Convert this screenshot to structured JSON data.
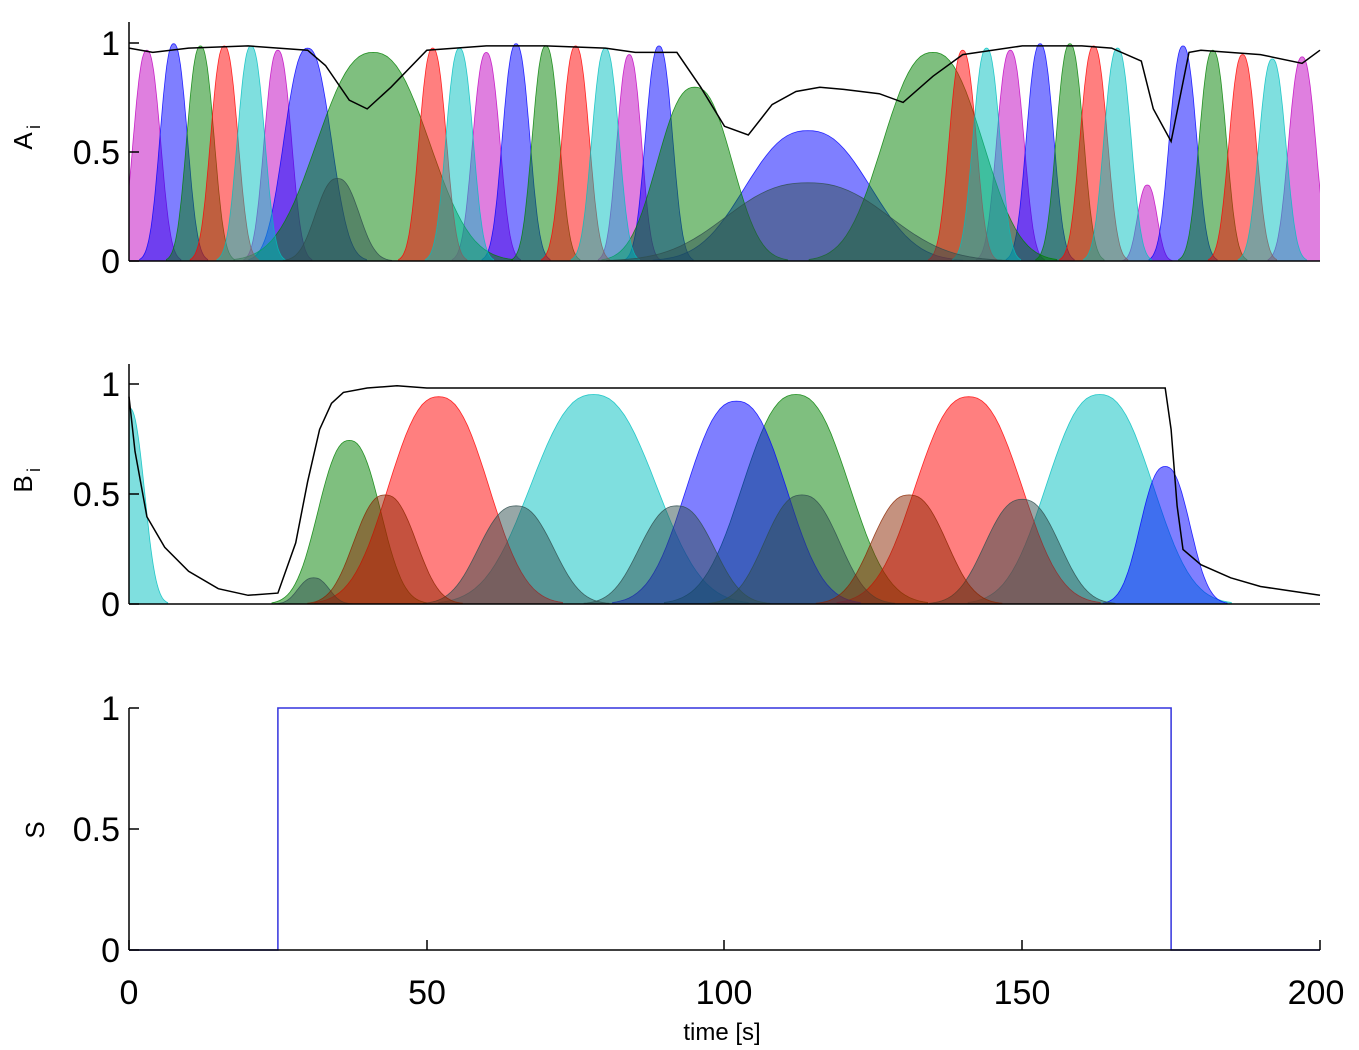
{
  "colors": {
    "blue": "#0000ff",
    "green": "#008000",
    "red": "#ff0000",
    "cyan": "#00bfbf",
    "magenta": "#bf00bf",
    "envelope": "#000000",
    "signal": "#3333dd"
  },
  "chart_data": [
    {
      "id": "A",
      "type": "area",
      "ylabel": "A",
      "ylabel_sub": "i",
      "xlim": [
        0,
        200
      ],
      "ylim": [
        0,
        1.1
      ],
      "yticks": [
        0,
        0.5,
        1
      ],
      "ytick_labels": [
        "0",
        "0.5",
        "1"
      ],
      "show_x_ticklabels": false,
      "grid": false,
      "envelope": {
        "x": [
          0,
          4,
          10,
          20,
          30,
          33,
          37,
          40,
          44,
          50,
          60,
          70,
          80,
          85,
          92,
          96,
          100,
          104,
          108,
          112,
          116,
          120,
          126,
          130,
          135,
          140,
          150,
          160,
          165,
          170,
          172,
          175,
          178,
          180,
          190,
          197,
          200
        ],
        "y": [
          0.98,
          0.96,
          0.98,
          0.99,
          0.97,
          0.9,
          0.74,
          0.7,
          0.8,
          0.97,
          0.99,
          0.99,
          0.98,
          0.96,
          0.96,
          0.8,
          0.62,
          0.58,
          0.72,
          0.78,
          0.8,
          0.79,
          0.77,
          0.73,
          0.85,
          0.95,
          0.99,
          0.99,
          0.98,
          0.92,
          0.7,
          0.55,
          0.96,
          0.97,
          0.95,
          0.91,
          0.97
        ]
      },
      "series": [
        {
          "color": "magenta",
          "peaks": [
            {
              "c": 3,
              "w": 2.2,
              "h": 0.97
            },
            {
              "c": 25,
              "w": 2.2,
              "h": 0.97
            },
            {
              "c": 60,
              "w": 2.2,
              "h": 0.96
            },
            {
              "c": 84,
              "w": 2.0,
              "h": 0.95
            },
            {
              "c": 148,
              "w": 2.2,
              "h": 0.97
            },
            {
              "c": 171,
              "w": 1.6,
              "h": 0.35
            },
            {
              "c": 197,
              "w": 2.2,
              "h": 0.94
            }
          ]
        },
        {
          "color": "blue",
          "peaks": [
            {
              "c": 7.5,
              "w": 2.2,
              "h": 1.0
            },
            {
              "c": 30,
              "w": 3.8,
              "h": 0.98
            },
            {
              "c": 65,
              "w": 2.2,
              "h": 1.0
            },
            {
              "c": 89,
              "w": 2.2,
              "h": 0.99
            },
            {
              "c": 114,
              "w": 10,
              "h": 0.6
            },
            {
              "c": 153,
              "w": 2.2,
              "h": 1.0
            },
            {
              "c": 177,
              "w": 2.2,
              "h": 0.99
            }
          ]
        },
        {
          "color": "green",
          "peaks": [
            {
              "c": 12,
              "w": 2.2,
              "h": 0.99
            },
            {
              "c": 41,
              "w": 9,
              "h": 0.96
            },
            {
              "c": 70,
              "w": 2.2,
              "h": 0.99
            },
            {
              "c": 95,
              "w": 6,
              "h": 0.8
            },
            {
              "c": 135,
              "w": 8,
              "h": 0.96
            },
            {
              "c": 158,
              "w": 2.2,
              "h": 1.0
            },
            {
              "c": 182,
              "w": 2.2,
              "h": 0.97
            }
          ]
        },
        {
          "color": "red",
          "peaks": [
            {
              "c": 16,
              "w": 2.2,
              "h": 0.99
            },
            {
              "c": 51,
              "w": 2.2,
              "h": 0.98
            },
            {
              "c": 75,
              "w": 2.2,
              "h": 0.99
            },
            {
              "c": 140,
              "w": 2.2,
              "h": 0.97
            },
            {
              "c": 162,
              "w": 2.2,
              "h": 0.99
            },
            {
              "c": 187,
              "w": 2.2,
              "h": 0.95
            }
          ]
        },
        {
          "color": "cyan",
          "peaks": [
            {
              "c": 20.5,
              "w": 2.2,
              "h": 0.99
            },
            {
              "c": 55.5,
              "w": 2.2,
              "h": 0.98
            },
            {
              "c": 80,
              "w": 2.2,
              "h": 0.98
            },
            {
              "c": 144,
              "w": 2.2,
              "h": 0.98
            },
            {
              "c": 166,
              "w": 2.2,
              "h": 0.98
            },
            {
              "c": 192,
              "w": 2.2,
              "h": 0.93
            }
          ]
        },
        {
          "color": "darkslate",
          "peaks": [
            {
              "c": 35,
              "w": 3.5,
              "h": 0.38
            },
            {
              "c": 114,
              "w": 13,
              "h": 0.36
            }
          ]
        }
      ]
    },
    {
      "id": "B",
      "type": "area",
      "ylabel": "B",
      "ylabel_sub": "i",
      "xlim": [
        0,
        200
      ],
      "ylim": [
        0,
        1.1
      ],
      "yticks": [
        0,
        0.5,
        1
      ],
      "ytick_labels": [
        "0",
        "0.5",
        "1"
      ],
      "show_x_ticklabels": false,
      "grid": false,
      "envelope": {
        "x": [
          0,
          1,
          3,
          6,
          10,
          15,
          20,
          25,
          28,
          30,
          32,
          34,
          36,
          40,
          45,
          50,
          100,
          150,
          174,
          175,
          176,
          177,
          180,
          185,
          190,
          195,
          200
        ],
        "y": [
          0.95,
          0.7,
          0.4,
          0.26,
          0.15,
          0.07,
          0.04,
          0.05,
          0.28,
          0.56,
          0.8,
          0.92,
          0.97,
          0.99,
          1.0,
          0.99,
          0.99,
          0.99,
          0.99,
          0.8,
          0.45,
          0.25,
          0.18,
          0.12,
          0.08,
          0.06,
          0.04
        ]
      },
      "series": [
        {
          "color": "cyan",
          "peaks": [
            {
              "c": 0,
              "w": 2.5,
              "h": 0.9
            },
            {
              "c": 78,
              "w": 10,
              "h": 0.96
            },
            {
              "c": 163,
              "w": 8.5,
              "h": 0.96
            }
          ]
        },
        {
          "color": "green",
          "peaks": [
            {
              "c": 37,
              "w": 5,
              "h": 0.75
            },
            {
              "c": 112,
              "w": 8.5,
              "h": 0.96
            }
          ]
        },
        {
          "color": "red",
          "peaks": [
            {
              "c": 52,
              "w": 8,
              "h": 0.95
            },
            {
              "c": 141,
              "w": 8.5,
              "h": 0.95
            }
          ]
        },
        {
          "color": "blue",
          "peaks": [
            {
              "c": 102,
              "w": 8,
              "h": 0.93
            },
            {
              "c": 174,
              "w": 4,
              "h": 0.63
            }
          ]
        },
        {
          "color": "darkslate",
          "peaks": [
            {
              "c": 31,
              "w": 2.5,
              "h": 0.12
            },
            {
              "c": 65,
              "w": 6,
              "h": 0.45
            },
            {
              "c": 92,
              "w": 6,
              "h": 0.45
            },
            {
              "c": 113,
              "w": 6,
              "h": 0.5
            },
            {
              "c": 150,
              "w": 6,
              "h": 0.48
            }
          ]
        },
        {
          "color": "brown",
          "peaks": [
            {
              "c": 43,
              "w": 5,
              "h": 0.5
            },
            {
              "c": 131,
              "w": 6,
              "h": 0.5
            }
          ]
        }
      ]
    },
    {
      "id": "S",
      "type": "line",
      "ylabel": "S",
      "xlabel": "time [s]",
      "xlim": [
        0,
        200
      ],
      "ylim": [
        0,
        1
      ],
      "yticks": [
        0,
        0.5,
        1
      ],
      "ytick_labels": [
        "0",
        "0.5",
        "1"
      ],
      "xticks": [
        0,
        50,
        100,
        150,
        200
      ],
      "xtick_labels": [
        "0",
        "50",
        "100",
        "150",
        "200"
      ],
      "show_x_ticklabels": true,
      "grid": false,
      "series": [
        {
          "color": "signal",
          "x": [
            0,
            25,
            25,
            175,
            175,
            200
          ],
          "y": [
            0,
            0,
            1,
            1,
            0,
            0
          ]
        }
      ]
    }
  ]
}
